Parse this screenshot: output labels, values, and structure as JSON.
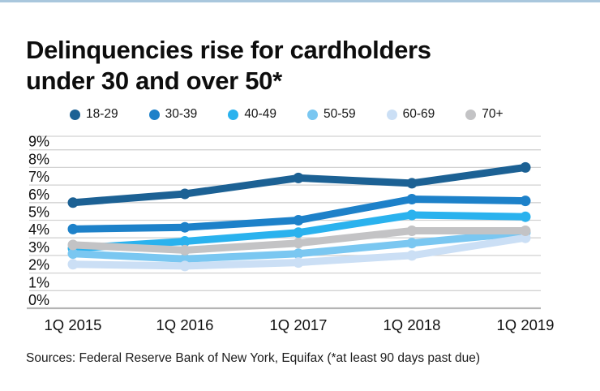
{
  "page": {
    "title": "Delinquencies rise for cardholders\nunder 30 and over 50*",
    "source_note": "Sources: Federal Reserve Bank of New York, Equifax (*at least 90 days past due)",
    "accent_color": "#a9c7dd"
  },
  "chart_data": {
    "type": "line",
    "title": "Delinquencies rise for cardholders under 30 and over 50*",
    "categories": [
      "1Q 2015",
      "1Q 2016",
      "1Q 2017",
      "1Q 2018",
      "1Q 2019"
    ],
    "unit": "%",
    "ylim": [
      0,
      9
    ],
    "yticks": [
      0,
      1,
      2,
      3,
      4,
      5,
      6,
      7,
      8,
      9
    ],
    "grid": true,
    "legend_position": "top",
    "series": [
      {
        "name": "18-29",
        "color": "#1c6194",
        "values": [
          6.0,
          6.5,
          7.4,
          7.1,
          8.0
        ]
      },
      {
        "name": "30-39",
        "color": "#1d81c9",
        "values": [
          4.5,
          4.6,
          5.0,
          6.2,
          6.1
        ]
      },
      {
        "name": "40-49",
        "color": "#2ab2ee",
        "values": [
          3.4,
          3.8,
          4.3,
          5.3,
          5.2
        ]
      },
      {
        "name": "50-59",
        "color": "#7ac7f1",
        "values": [
          3.1,
          2.8,
          3.1,
          3.7,
          4.3
        ]
      },
      {
        "name": "60-69",
        "color": "#cbdff5",
        "values": [
          2.5,
          2.4,
          2.6,
          3.0,
          4.0
        ]
      },
      {
        "name": "70+",
        "color": "#c3c3c5",
        "values": [
          3.6,
          3.3,
          3.7,
          4.4,
          4.4
        ]
      }
    ]
  }
}
